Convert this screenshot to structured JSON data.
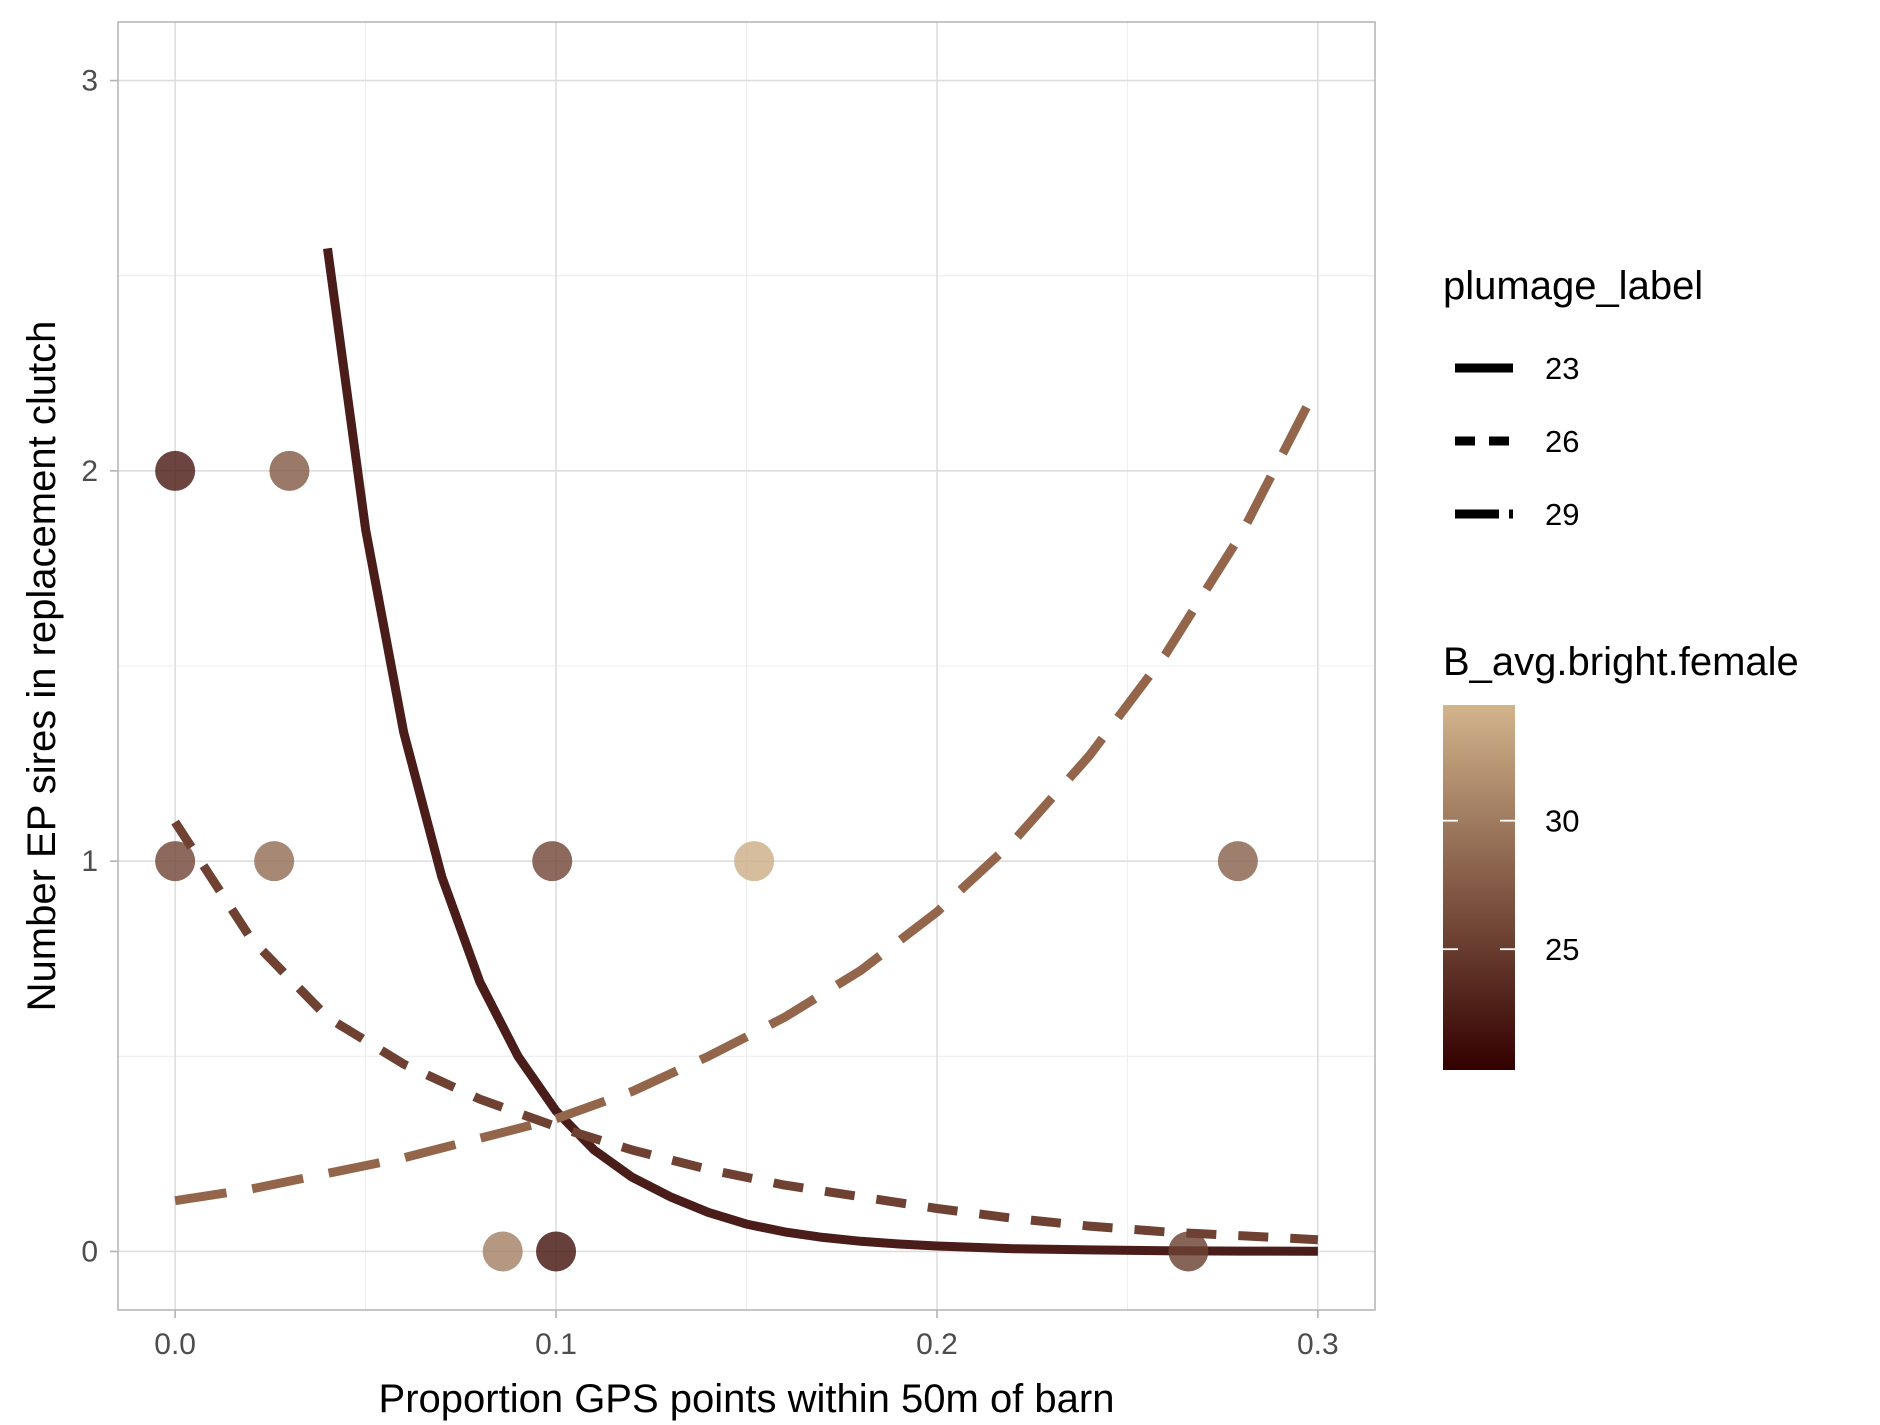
{
  "chart_data": {
    "type": "scatter",
    "title": "",
    "xlabel": "Proportion GPS points within 50m of barn",
    "ylabel": "Number EP sires in replacement clutch",
    "xlim": [
      -0.015,
      0.315
    ],
    "ylim": [
      -0.15,
      3.15
    ],
    "x_ticks": [
      0.0,
      0.1,
      0.2,
      0.3
    ],
    "x_tick_labels": [
      "0.0",
      "0.1",
      "0.2",
      "0.3"
    ],
    "y_ticks": [
      0,
      1,
      2,
      3
    ],
    "y_tick_labels": [
      "0",
      "1",
      "2",
      "3"
    ],
    "grid": true,
    "legend_position": "right",
    "points": [
      {
        "x": 0.0,
        "y": 2,
        "brightness": 22.5
      },
      {
        "x": 0.03,
        "y": 2,
        "brightness": 27.5
      },
      {
        "x": 0.0,
        "y": 1,
        "brightness": 26.0
      },
      {
        "x": 0.026,
        "y": 1,
        "brightness": 29.0
      },
      {
        "x": 0.099,
        "y": 1,
        "brightness": 26.0
      },
      {
        "x": 0.152,
        "y": 1,
        "brightness": 34.0
      },
      {
        "x": 0.279,
        "y": 1,
        "brightness": 28.0
      },
      {
        "x": 0.086,
        "y": 0,
        "brightness": 30.5
      },
      {
        "x": 0.1,
        "y": 0,
        "brightness": 22.0
      },
      {
        "x": 0.266,
        "y": 0,
        "brightness": 25.5
      }
    ],
    "series": [
      {
        "name": "23",
        "linetype": "solid",
        "color": "#4a1d1a",
        "x": [
          0.04,
          0.05,
          0.06,
          0.07,
          0.08,
          0.09,
          0.1,
          0.11,
          0.12,
          0.13,
          0.14,
          0.15,
          0.16,
          0.17,
          0.18,
          0.19,
          0.2,
          0.22,
          0.24,
          0.26,
          0.28,
          0.3
        ],
        "y": [
          2.57,
          1.85,
          1.33,
          0.96,
          0.69,
          0.5,
          0.36,
          0.26,
          0.19,
          0.14,
          0.1,
          0.07,
          0.05,
          0.036,
          0.026,
          0.019,
          0.014,
          0.007,
          0.004,
          0.002,
          0.001,
          0.0005
        ]
      },
      {
        "name": "26",
        "linetype": "dashed",
        "color": "#6e4132",
        "x": [
          0.0,
          0.02,
          0.04,
          0.06,
          0.08,
          0.1,
          0.12,
          0.14,
          0.16,
          0.18,
          0.2,
          0.22,
          0.24,
          0.26,
          0.28,
          0.3
        ],
        "y": [
          1.1,
          0.8,
          0.6,
          0.48,
          0.39,
          0.32,
          0.26,
          0.21,
          0.17,
          0.14,
          0.11,
          0.085,
          0.065,
          0.05,
          0.04,
          0.03
        ]
      },
      {
        "name": "29",
        "linetype": "longdash",
        "color": "#93664c",
        "x": [
          0.0,
          0.02,
          0.04,
          0.06,
          0.08,
          0.1,
          0.12,
          0.14,
          0.16,
          0.18,
          0.2,
          0.22,
          0.24,
          0.26,
          0.28,
          0.3
        ],
        "y": [
          0.13,
          0.16,
          0.2,
          0.24,
          0.29,
          0.34,
          0.41,
          0.5,
          0.6,
          0.72,
          0.87,
          1.05,
          1.27,
          1.53,
          1.84,
          2.22
        ]
      }
    ],
    "legend_linetype": {
      "title": "plumage_label",
      "entries": [
        "23",
        "26",
        "29"
      ]
    },
    "legend_color": {
      "title": "B_avg.bright.female",
      "min": 20.3,
      "max": 34.5,
      "ticks": [
        25,
        30
      ],
      "tick_labels": [
        "25",
        "30"
      ],
      "low_color": "#330000",
      "high_color": "#d2b48c"
    }
  }
}
